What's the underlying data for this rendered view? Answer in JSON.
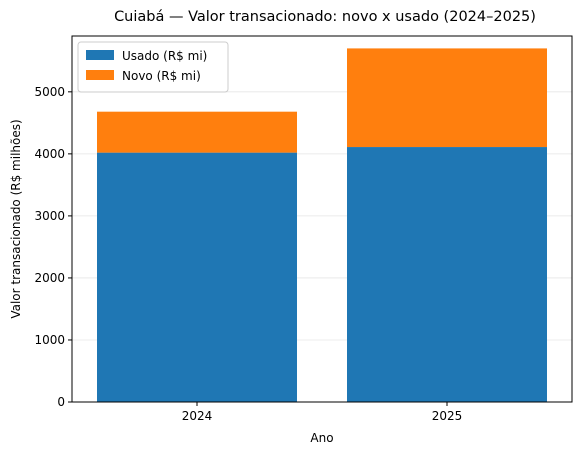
{
  "chart_data": {
    "type": "bar",
    "stacked": true,
    "title": "Cuiabá — Valor transacionado: novo x usado (2024–2025)",
    "xlabel": "Ano",
    "ylabel": "Valor transacionado (R$ milhões)",
    "categories": [
      "2024",
      "2025"
    ],
    "series": [
      {
        "name": "Usado (R$ mi)",
        "color": "#1f77b4",
        "values": [
          4020,
          4110
        ]
      },
      {
        "name": "Novo (R$ mi)",
        "color": "#ff7f0e",
        "values": [
          660,
          1590
        ]
      }
    ],
    "ylim": [
      0,
      5900
    ],
    "yticks": [
      0,
      1000,
      2000,
      3000,
      4000,
      5000
    ],
    "grid": "horizontal",
    "legend_position": "top-left"
  }
}
